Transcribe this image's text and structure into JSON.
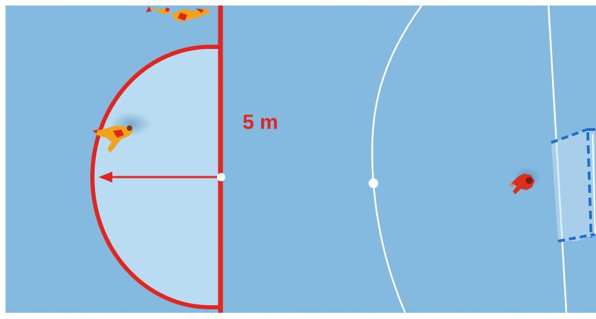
{
  "diagram": {
    "distance_label": "5 m"
  },
  "colors": {
    "court": "#7fb6df",
    "zone_fill": "#b9dcf2",
    "line_red": "#e0261f",
    "line_white": "#ffffff",
    "goal_blue": "#1f6fc8",
    "player_orange": "#f3a21c",
    "player_red": "#d8321f"
  },
  "icons": {
    "players": [
      "player-top-icon",
      "player-zone-icon",
      "player-goalkeeper-icon"
    ],
    "goal": "goal-icon",
    "arrow": "radius-arrow-icon"
  }
}
